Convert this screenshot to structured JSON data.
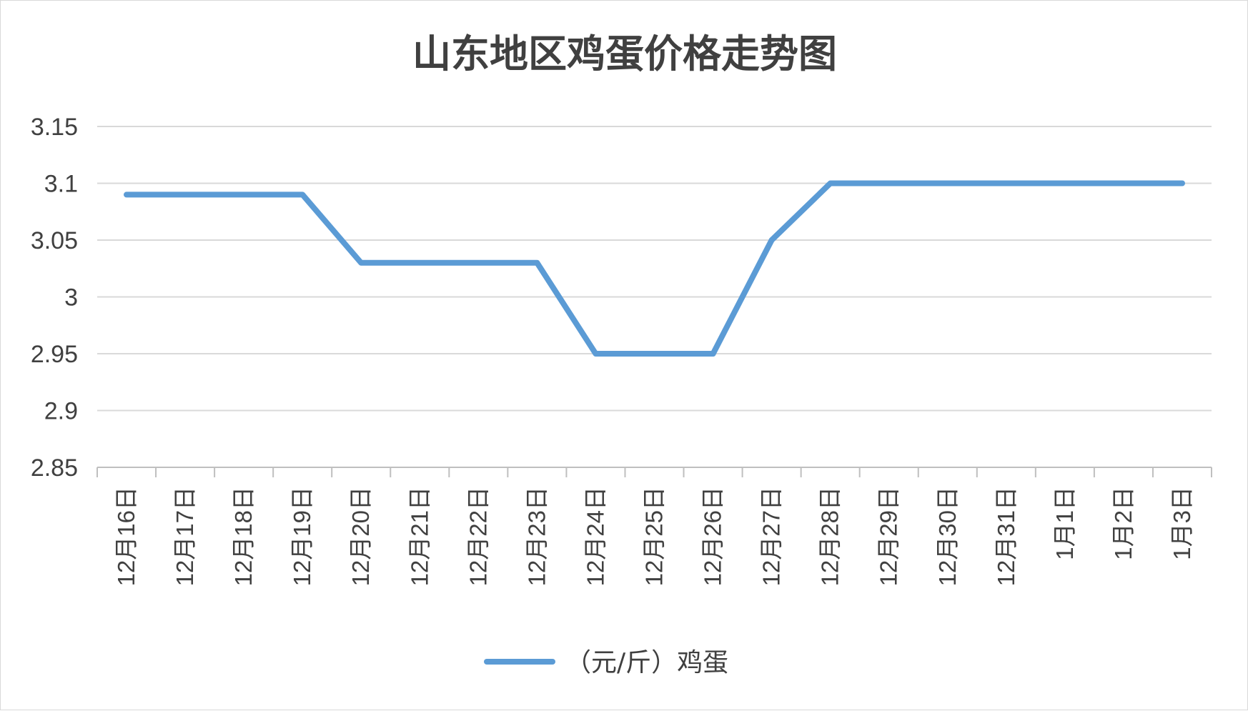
{
  "chart_data": {
    "type": "line",
    "title": "山东地区鸡蛋价格走势图",
    "xlabel": "",
    "ylabel": "",
    "categories": [
      "12月16日",
      "12月17日",
      "12月18日",
      "12月19日",
      "12月20日",
      "12月21日",
      "12月22日",
      "12月23日",
      "12月24日",
      "12月25日",
      "12月26日",
      "12月27日",
      "12月28日",
      "12月29日",
      "12月30日",
      "12月31日",
      "1月1日",
      "1月2日",
      "1月3日"
    ],
    "series": [
      {
        "name": "（元/斤）鸡蛋",
        "color": "#5b9bd5",
        "values": [
          3.09,
          3.09,
          3.09,
          3.09,
          3.03,
          3.03,
          3.03,
          3.03,
          2.95,
          2.95,
          2.95,
          3.05,
          3.1,
          3.1,
          3.1,
          3.1,
          3.1,
          3.1,
          3.1
        ]
      }
    ],
    "ylim": [
      2.85,
      3.15
    ],
    "yticks": [
      3.15,
      3.1,
      3.05,
      3,
      2.95,
      2.9,
      2.85
    ],
    "ytick_labels": [
      "3.15",
      "3.1",
      "3.05",
      "3",
      "2.95",
      "2.9",
      "2.85"
    ],
    "grid": true,
    "legend": "bottom"
  },
  "colors": {
    "gridline": "#d9d9d9",
    "axis": "#bfbfbf",
    "text": "#404040",
    "title": "#404040"
  }
}
